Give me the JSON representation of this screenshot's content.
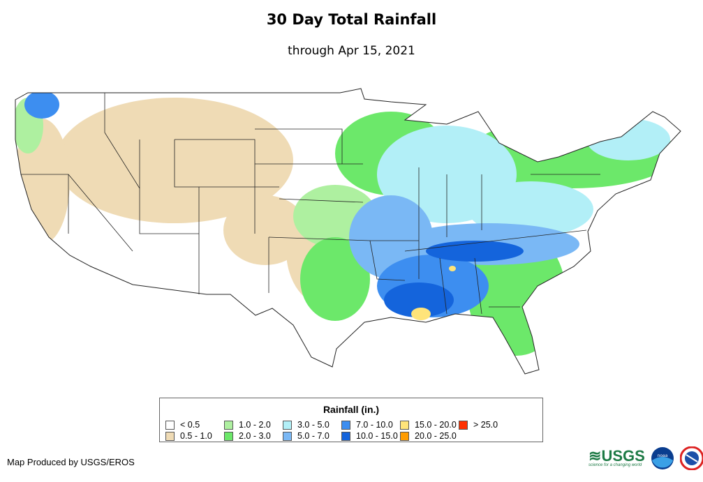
{
  "header": {
    "title": "30 Day Total Rainfall",
    "subtitle": "through Apr 15, 2021"
  },
  "legend": {
    "title": "Rainfall (in.)",
    "items": [
      {
        "label": "< 0.5",
        "color": "#ffffff"
      },
      {
        "label": "0.5 - 1.0",
        "color": "#efdbb5"
      },
      {
        "label": "1.0 - 2.0",
        "color": "#aef0a0"
      },
      {
        "label": "2.0 - 3.0",
        "color": "#6ce86a"
      },
      {
        "label": "3.0 - 5.0",
        "color": "#b2eff7"
      },
      {
        "label": "5.0 - 7.0",
        "color": "#7ab8f5"
      },
      {
        "label": "7.0 - 10.0",
        "color": "#3d8ef0"
      },
      {
        "label": "10.0 - 15.0",
        "color": "#1464dc"
      },
      {
        "label": "15.0 - 20.0",
        "color": "#ffe47a"
      },
      {
        "label": "20.0 - 25.0",
        "color": "#ff9c00"
      },
      {
        "label": "> 25.0",
        "color": "#ff3000"
      }
    ]
  },
  "footer": {
    "credit": "Map Produced by USGS/EROS",
    "logos": {
      "usgs": "USGS",
      "usgs_tagline": "science for a changing world",
      "noaa": "noaa",
      "nws": "National Weather Service"
    }
  }
}
